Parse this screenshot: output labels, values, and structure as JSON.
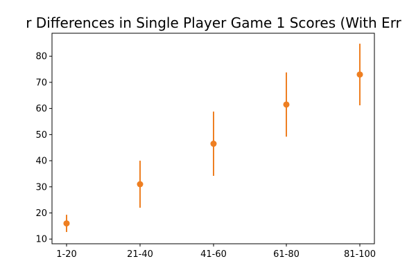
{
  "chart_data": {
    "type": "scatter",
    "title": "r Differences in Single Player Game 1 Scores (With Err",
    "xlabel": "",
    "ylabel": "",
    "categories": [
      "1-20",
      "21-40",
      "41-60",
      "61-80",
      "81-100"
    ],
    "series": [
      {
        "values": [
          16.0,
          31.0,
          46.5,
          61.5,
          73.0
        ],
        "error": [
          3.3,
          9.0,
          12.3,
          12.3,
          11.8
        ],
        "color": "#ee7f22"
      }
    ],
    "ylim": [
      8.2,
      88.8
    ],
    "yticks": [
      10,
      20,
      30,
      40,
      50,
      60,
      70,
      80
    ],
    "grid": false
  }
}
